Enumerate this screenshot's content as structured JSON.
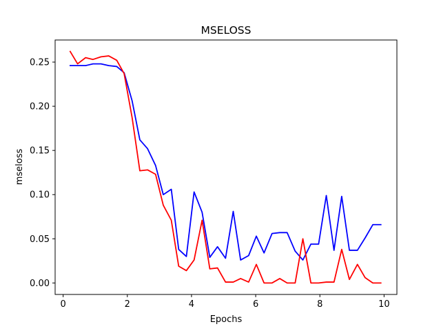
{
  "chart_data": {
    "type": "line",
    "title": "MSELOSS",
    "xlabel": "Epochs",
    "ylabel": "mseloss",
    "xlim": [
      -0.25,
      10.4
    ],
    "ylim": [
      -0.013,
      0.275
    ],
    "xticks": [
      0,
      2,
      4,
      6,
      8,
      10
    ],
    "xtick_labels": [
      "0",
      "2",
      "4",
      "6",
      "8",
      "10"
    ],
    "yticks": [
      0.0,
      0.05,
      0.1,
      0.15,
      0.2,
      0.25
    ],
    "ytick_labels": [
      "0.00",
      "0.05",
      "0.10",
      "0.15",
      "0.20",
      "0.25"
    ],
    "grid": false,
    "legend": "none",
    "x": [
      0.22,
      0.45,
      0.7,
      0.93,
      1.18,
      1.42,
      1.67,
      1.9,
      2.15,
      2.39,
      2.63,
      2.88,
      3.12,
      3.37,
      3.6,
      3.84,
      4.08,
      4.33,
      4.57,
      4.81,
      5.06,
      5.3,
      5.53,
      5.78,
      6.02,
      6.26,
      6.51,
      6.75,
      6.98,
      7.23,
      7.47,
      7.72,
      7.96,
      8.2,
      8.44,
      8.68,
      8.92,
      9.17,
      9.41,
      9.65,
      9.9
    ],
    "series": [
      {
        "color": "#0000ff",
        "values": [
          0.246,
          0.246,
          0.246,
          0.248,
          0.248,
          0.246,
          0.245,
          0.238,
          0.206,
          0.162,
          0.152,
          0.133,
          0.1,
          0.106,
          0.038,
          0.03,
          0.103,
          0.08,
          0.029,
          0.041,
          0.028,
          0.081,
          0.026,
          0.031,
          0.053,
          0.034,
          0.056,
          0.057,
          0.057,
          0.036,
          0.026,
          0.044,
          0.044,
          0.099,
          0.037,
          0.098,
          0.037,
          0.037,
          0.051,
          0.066,
          0.066
        ]
      },
      {
        "color": "#ff0000",
        "values": [
          0.262,
          0.248,
          0.255,
          0.253,
          0.256,
          0.257,
          0.252,
          0.237,
          0.187,
          0.127,
          0.128,
          0.123,
          0.088,
          0.071,
          0.019,
          0.014,
          0.026,
          0.071,
          0.016,
          0.017,
          0.001,
          0.001,
          0.005,
          0.001,
          0.021,
          0.0,
          0.0,
          0.005,
          0.0,
          0.0,
          0.05,
          0.0,
          0.0,
          0.001,
          0.001,
          0.038,
          0.004,
          0.021,
          0.006,
          0.0,
          0.0
        ]
      }
    ]
  }
}
